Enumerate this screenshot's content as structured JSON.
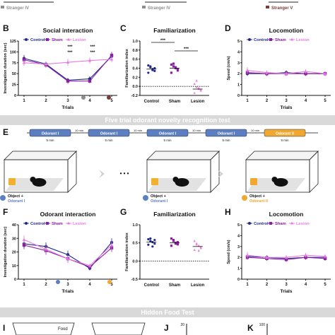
{
  "top_strip": {
    "labels": [
      "Stranger IV",
      "Stranger IV",
      "Stranger V"
    ],
    "colors": [
      "#8c8c8c",
      "#8c8c8c",
      "#7b3b3b"
    ]
  },
  "banners": {
    "odorant": "Five trial odorant novelty recognition test",
    "food": "Hidden Food Test"
  },
  "legend": [
    {
      "name": "Control",
      "color": "#1f2a8a",
      "marker": "circle"
    },
    {
      "name": "Sham",
      "color": "#8a1fa3",
      "marker": "square"
    },
    {
      "name": "Lesion",
      "color": "#e87be0",
      "marker": "triangle"
    }
  ],
  "timeline": {
    "trials": [
      "Odorant I",
      "Odorant I",
      "Odorant I",
      "Odorant I",
      "Odorant II"
    ],
    "durations": [
      "5 min",
      "5 min",
      "5 min",
      "5 min",
      "5 min"
    ],
    "gaps": [
      "10 min",
      "10 min",
      "10 min",
      "10 min"
    ],
    "colors": [
      "#5b7fc2",
      "#5b7fc2",
      "#5b7fc2",
      "#5b7fc2",
      "#f0a830"
    ]
  },
  "arenas": {
    "labels": [
      {
        "line1": "Object +",
        "line2": "Odorant I",
        "color2": "#5b7fc2"
      },
      {
        "line1": "Object +",
        "line2": "Odorant I",
        "color2": "#5b7fc2"
      },
      {
        "line1": "Object +",
        "line2": "Odorant II",
        "color2": "#f0a830"
      }
    ],
    "ellipsis": "• • •"
  },
  "bottom": {
    "food_label": "Food",
    "j_tick": "20",
    "k_tick": "100"
  },
  "chart_data": [
    {
      "panel": "B",
      "type": "line",
      "title": "Social interaction",
      "xlabel": "Trials",
      "ylabel": "Investigation duration (sec)",
      "x": [
        1,
        2,
        3,
        4,
        5
      ],
      "ylim": [
        0,
        125
      ],
      "yticks": [
        0,
        25,
        50,
        75,
        100,
        125
      ],
      "series": [
        {
          "name": "Control",
          "values": [
            85,
            72,
            35,
            38,
            90
          ],
          "err": [
            8,
            6,
            5,
            6,
            8
          ]
        },
        {
          "name": "Sham",
          "values": [
            82,
            70,
            33,
            33,
            92
          ],
          "err": [
            8,
            6,
            6,
            5,
            8
          ]
        },
        {
          "name": "Lesion",
          "values": [
            75,
            72,
            76,
            80,
            83
          ],
          "err": [
            7,
            6,
            8,
            7,
            7
          ]
        }
      ],
      "annotations": [
        "***",
        "***",
        "***",
        "***"
      ]
    },
    {
      "panel": "C",
      "type": "scatter",
      "title": "Familiarization",
      "ylabel": "Familiarization index",
      "categories": [
        "Control",
        "Sham",
        "Lesion"
      ],
      "ylim": [
        -0.2,
        1.0
      ],
      "yticks": [
        -0.2,
        0.0,
        0.2,
        0.4,
        0.6,
        0.8,
        1.0
      ],
      "means": [
        0.38,
        0.4,
        -0.06
      ],
      "points": [
        [
          0.46,
          0.42,
          0.38,
          0.34,
          0.3,
          0.44,
          0.36,
          0.4
        ],
        [
          0.48,
          0.44,
          0.4,
          0.35,
          0.3,
          0.5,
          0.42,
          0.38
        ],
        [
          0.05,
          -0.02,
          -0.06,
          -0.1,
          -0.15,
          0.12,
          -0.04,
          -0.08
        ]
      ],
      "annotations": [
        "***",
        "***"
      ]
    },
    {
      "panel": "D",
      "type": "line",
      "title": "Locomotion",
      "xlabel": "Trials",
      "ylabel": "Speed (cm/s)",
      "x": [
        1,
        2,
        3,
        4,
        5
      ],
      "ylim": [
        0,
        5
      ],
      "yticks": [
        0,
        1,
        2,
        3,
        4,
        5
      ],
      "series": [
        {
          "name": "Control",
          "values": [
            2.0,
            2.0,
            2.1,
            2.0,
            2.0
          ],
          "err": [
            0.2,
            0.2,
            0.2,
            0.2,
            0.2
          ]
        },
        {
          "name": "Sham",
          "values": [
            2.1,
            2.0,
            2.0,
            2.0,
            2.0
          ],
          "err": [
            0.2,
            0.2,
            0.2,
            0.2,
            0.2
          ]
        },
        {
          "name": "Lesion",
          "values": [
            2.3,
            2.1,
            2.0,
            2.2,
            2.0
          ],
          "err": [
            0.3,
            0.2,
            0.2,
            0.2,
            0.2
          ]
        }
      ]
    },
    {
      "panel": "F",
      "type": "line",
      "title": "Odorant interaction",
      "xlabel": "Trials",
      "ylabel": "Investigation duration (sec)",
      "x": [
        1,
        2,
        3,
        4,
        5
      ],
      "ylim": [
        0,
        40
      ],
      "yticks": [
        0,
        10,
        20,
        30,
        40
      ],
      "series": [
        {
          "name": "Control",
          "values": [
            26,
            24,
            18,
            8,
            27
          ],
          "err": [
            3,
            3,
            3,
            1.5,
            3
          ]
        },
        {
          "name": "Sham",
          "values": [
            25,
            21,
            15,
            9,
            23
          ],
          "err": [
            3,
            3,
            3,
            1.5,
            3
          ]
        },
        {
          "name": "Lesion",
          "values": [
            29,
            22,
            15,
            10,
            25
          ],
          "err": [
            3,
            3,
            3,
            1.5,
            3
          ]
        }
      ]
    },
    {
      "panel": "G",
      "type": "scatter",
      "title": "Familiarization",
      "ylabel": "Familiarization index",
      "categories": [
        "Control",
        "Sham",
        "Lesion"
      ],
      "ylim": [
        -0.5,
        1.0
      ],
      "yticks": [
        -0.5,
        0.0,
        0.5,
        1.0
      ],
      "means": [
        0.52,
        0.5,
        0.4
      ],
      "points": [
        [
          0.6,
          0.55,
          0.52,
          0.48,
          0.45,
          0.62,
          0.4,
          0.58
        ],
        [
          0.62,
          0.55,
          0.5,
          0.46,
          0.42,
          0.58,
          0.48,
          0.52
        ],
        [
          0.55,
          0.48,
          0.42,
          0.38,
          0.3,
          0.45,
          0.28,
          0.35
        ]
      ]
    },
    {
      "panel": "H",
      "type": "line",
      "title": "Locomotion",
      "xlabel": "Trials",
      "ylabel": "Speed (cm/s)",
      "x": [
        1,
        2,
        3,
        4,
        5
      ],
      "ylim": [
        0,
        5
      ],
      "yticks": [
        0,
        1,
        2,
        3,
        4,
        5
      ],
      "series": [
        {
          "name": "Control",
          "values": [
            2.1,
            2.0,
            1.9,
            2.0,
            2.0
          ],
          "err": [
            0.2,
            0.2,
            0.2,
            0.2,
            0.2
          ]
        },
        {
          "name": "Sham",
          "values": [
            2.0,
            1.9,
            1.8,
            2.0,
            1.9
          ],
          "err": [
            0.2,
            0.2,
            0.2,
            0.2,
            0.2
          ]
        },
        {
          "name": "Lesion",
          "values": [
            2.2,
            2.0,
            2.0,
            2.2,
            2.1
          ],
          "err": [
            0.3,
            0.2,
            0.2,
            0.2,
            0.2
          ]
        }
      ]
    }
  ]
}
